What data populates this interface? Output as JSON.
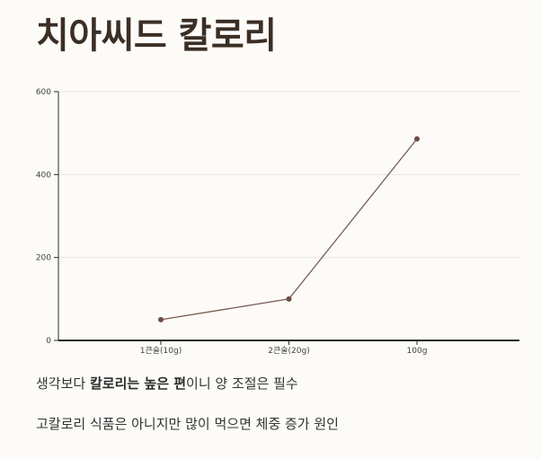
{
  "colors": {
    "background": "#fdfbf8",
    "title": "#3b2e24",
    "text": "#333333",
    "line": "#7a5852",
    "point": "#6e4d47",
    "grid": "#e7e3dd",
    "axis": "#2b2b2b"
  },
  "chart_data": {
    "type": "line",
    "title": "치아씨드 칼로리",
    "categories": [
      "1큰술(10g)",
      "2큰술(20g)",
      "100g"
    ],
    "values": [
      50,
      100,
      486
    ],
    "ylim": [
      0,
      600
    ],
    "yticks": [
      0,
      200,
      400,
      600
    ],
    "grid": true
  },
  "notes": {
    "first": {
      "pre": "생각보다 ",
      "bold": "칼로리는 높은 편",
      "post": "이니 양 조절은 필수"
    },
    "second": {
      "text": "고칼로리 식품은 아니지만 많이 먹으면 체중 증가 원인"
    }
  }
}
